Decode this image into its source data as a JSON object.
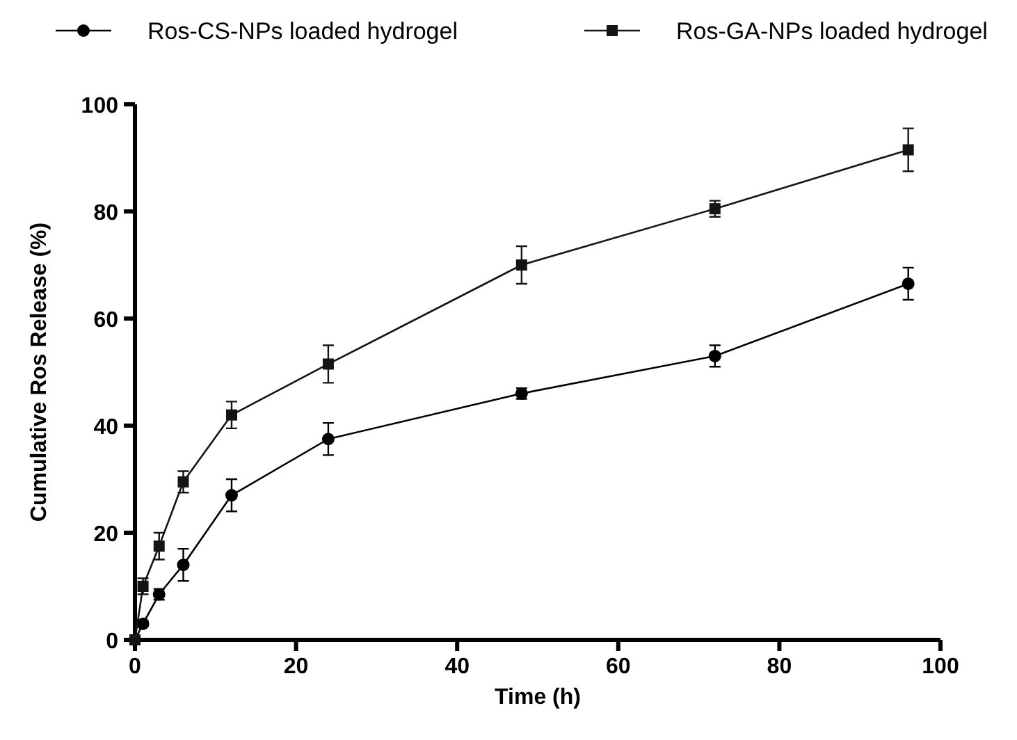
{
  "chart_data": {
    "type": "line",
    "xlabel": "Time (h)",
    "ylabel": "Cumulative Ros Release (%)",
    "x": [
      0,
      1,
      3,
      6,
      12,
      24,
      48,
      72,
      96
    ],
    "series": [
      {
        "name": "Ros-CS-NPs loaded hydrogel",
        "color": "#000000",
        "marker": "circle",
        "values": [
          0,
          3,
          8.5,
          14,
          27,
          37.5,
          46,
          53,
          66.5
        ],
        "errors": [
          null,
          0.5,
          1,
          3,
          3,
          3,
          1,
          2,
          3
        ]
      },
      {
        "name": "Ros-GA-NPs loaded hydrogel",
        "color": "#141414",
        "marker": "square",
        "values": [
          0,
          10,
          17.5,
          29.5,
          42,
          51.5,
          70,
          80.5,
          91.5
        ],
        "errors": [
          null,
          1.5,
          2.5,
          2,
          2.5,
          3.5,
          3.5,
          1.5,
          4
        ]
      }
    ],
    "xlim": [
      0,
      100
    ],
    "xticks": [
      0,
      20,
      40,
      60,
      80,
      100
    ],
    "ylim": [
      0,
      100
    ],
    "yticks": [
      0,
      20,
      40,
      60,
      80,
      100
    ],
    "grid": false,
    "legend": "top",
    "line_style": "solid"
  }
}
